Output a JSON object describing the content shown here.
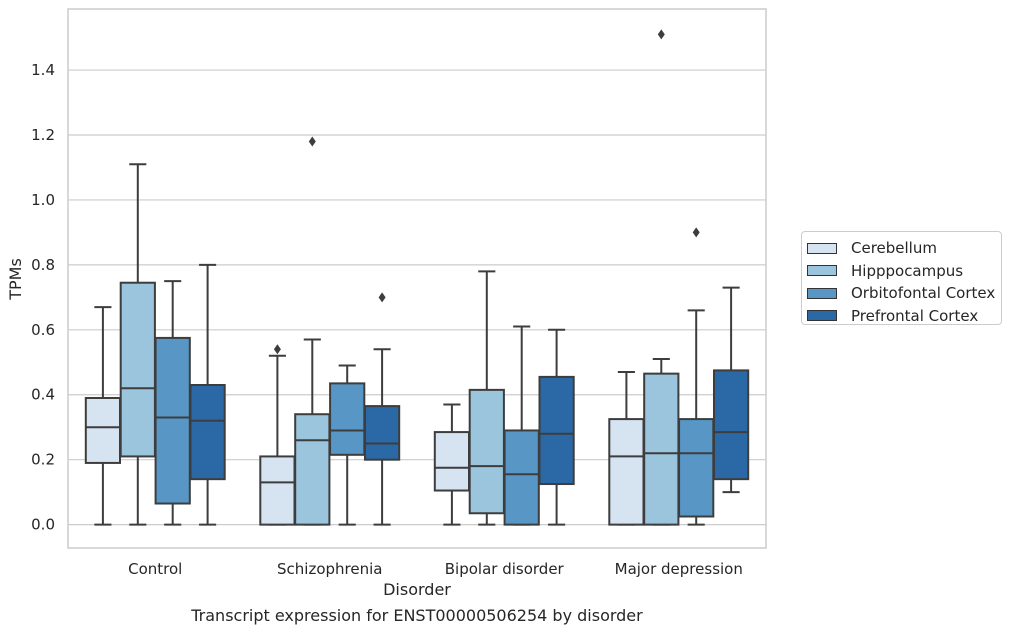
{
  "chart_data": {
    "type": "box",
    "title": "",
    "caption": "Transcript expression for ENST00000506254 by disorder",
    "xlabel": "Disorder",
    "ylabel": "TPMs",
    "ylim": [
      -0.072,
      1.588
    ],
    "yticks": [
      "0.0",
      "0.2",
      "0.4",
      "0.6",
      "0.8",
      "1.0",
      "1.2",
      "1.4"
    ],
    "grid": "horizontal",
    "legend_position": "outside-right",
    "categories": [
      "Control",
      "Schizophrenia",
      "Bipolar disorder",
      "Major depression"
    ],
    "series": [
      {
        "name": "Cerebellum",
        "color": "#d6e3f1",
        "boxes": [
          {
            "whislo": 0.0,
            "q1": 0.19,
            "med": 0.3,
            "q3": 0.39,
            "whishi": 0.67,
            "fliers": []
          },
          {
            "whislo": 0.0,
            "q1": 0.0,
            "med": 0.13,
            "q3": 0.21,
            "whishi": 0.52,
            "fliers": [
              0.54
            ]
          },
          {
            "whislo": 0.0,
            "q1": 0.105,
            "med": 0.175,
            "q3": 0.285,
            "whishi": 0.37,
            "fliers": []
          },
          {
            "whislo": 0.0,
            "q1": 0.0,
            "med": 0.21,
            "q3": 0.325,
            "whishi": 0.47,
            "fliers": []
          }
        ]
      },
      {
        "name": "Hipppocampus",
        "color": "#9bc5dc",
        "boxes": [
          {
            "whislo": 0.0,
            "q1": 0.21,
            "med": 0.42,
            "q3": 0.745,
            "whishi": 1.11,
            "fliers": []
          },
          {
            "whislo": 0.0,
            "q1": 0.0,
            "med": 0.26,
            "q3": 0.34,
            "whishi": 0.57,
            "fliers": [
              1.18
            ]
          },
          {
            "whislo": 0.0,
            "q1": 0.035,
            "med": 0.18,
            "q3": 0.415,
            "whishi": 0.78,
            "fliers": []
          },
          {
            "whislo": 0.0,
            "q1": 0.0,
            "med": 0.22,
            "q3": 0.465,
            "whishi": 0.51,
            "fliers": [
              1.51
            ]
          }
        ]
      },
      {
        "name": "Orbitofontal Cortex",
        "color": "#5897c5",
        "boxes": [
          {
            "whislo": 0.0,
            "q1": 0.065,
            "med": 0.33,
            "q3": 0.575,
            "whishi": 0.75,
            "fliers": []
          },
          {
            "whislo": 0.0,
            "q1": 0.215,
            "med": 0.29,
            "q3": 0.435,
            "whishi": 0.49,
            "fliers": []
          },
          {
            "whislo": 0.0,
            "q1": 0.0,
            "med": 0.155,
            "q3": 0.29,
            "whishi": 0.61,
            "fliers": []
          },
          {
            "whislo": 0.0,
            "q1": 0.025,
            "med": 0.22,
            "q3": 0.325,
            "whishi": 0.66,
            "fliers": [
              0.9
            ]
          }
        ]
      },
      {
        "name": "Prefrontal Cortex",
        "color": "#2a69a6",
        "boxes": [
          {
            "whislo": 0.0,
            "q1": 0.14,
            "med": 0.32,
            "q3": 0.43,
            "whishi": 0.8,
            "fliers": []
          },
          {
            "whislo": 0.0,
            "q1": 0.2,
            "med": 0.25,
            "q3": 0.365,
            "whishi": 0.54,
            "fliers": [
              0.7
            ]
          },
          {
            "whislo": 0.0,
            "q1": 0.125,
            "med": 0.28,
            "q3": 0.455,
            "whishi": 0.6,
            "fliers": []
          },
          {
            "whislo": 0.1,
            "q1": 0.14,
            "med": 0.285,
            "q3": 0.475,
            "whishi": 0.73,
            "fliers": []
          }
        ]
      }
    ]
  }
}
